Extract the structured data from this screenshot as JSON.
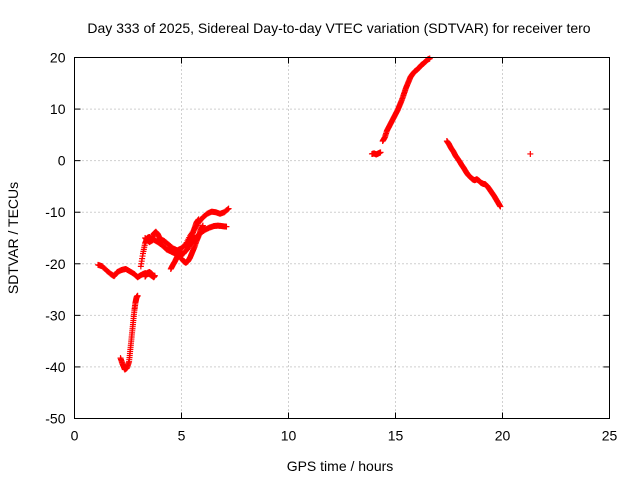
{
  "chart_data": {
    "type": "scatter",
    "title": "Day 333 of 2025, Sidereal Day-to-day VTEC variation (SDTVAR) for receiver tero",
    "xlabel": "GPS time / hours",
    "ylabel": "SDTVAR / TECUs",
    "xlim": [
      0,
      25
    ],
    "ylim": [
      -50,
      20
    ],
    "xticks": [
      0,
      5,
      10,
      15,
      20,
      25
    ],
    "yticks": [
      -50,
      -40,
      -30,
      -20,
      -10,
      0,
      10,
      20
    ],
    "xtick_labels": [
      "0",
      "5",
      "10",
      "15",
      "20",
      "25"
    ],
    "ytick_labels": [
      "-50",
      "-40",
      "-30",
      "-20",
      "-10",
      "0",
      "10",
      "20"
    ],
    "grid": true,
    "marker": "plus",
    "color": "#ff0000",
    "series": [
      {
        "segments": [
          [
            [
              1.1,
              -20.2
            ],
            [
              1.3,
              -20.5
            ],
            [
              1.5,
              -21.3
            ],
            [
              1.7,
              -22.0
            ],
            [
              1.85,
              -22.4
            ],
            [
              2.0,
              -21.6
            ],
            [
              2.2,
              -21.2
            ],
            [
              2.4,
              -21.0
            ],
            [
              2.6,
              -21.5
            ],
            [
              2.8,
              -22.0
            ],
            [
              2.95,
              -22.6
            ],
            [
              3.1,
              -22.2
            ],
            [
              3.3,
              -21.8
            ],
            [
              3.5,
              -22.0
            ],
            [
              3.7,
              -22.6
            ],
            [
              3.75,
              -22.3
            ]
          ],
          [
            [
              2.15,
              -38.3
            ],
            [
              2.25,
              -39.5
            ],
            [
              2.35,
              -40.5
            ],
            [
              2.45,
              -40.2
            ],
            [
              2.55,
              -39.0
            ],
            [
              2.6,
              -37.0
            ],
            [
              2.65,
              -35.0
            ],
            [
              2.7,
              -33.0
            ],
            [
              2.75,
              -31.0
            ],
            [
              2.8,
              -29.0
            ],
            [
              2.85,
              -27.5
            ],
            [
              2.9,
              -26.5
            ],
            [
              2.95,
              -26.2
            ]
          ],
          [
            [
              3.1,
              -20.5
            ],
            [
              3.2,
              -18.0
            ],
            [
              3.3,
              -16.0
            ],
            [
              3.4,
              -15.0
            ],
            [
              3.5,
              -14.8
            ],
            [
              3.6,
              -15.4
            ],
            [
              3.7,
              -14.2
            ],
            [
              3.8,
              -13.8
            ],
            [
              3.9,
              -14.3
            ],
            [
              4.0,
              -15.2
            ],
            [
              4.2,
              -15.6
            ],
            [
              4.4,
              -16.3
            ],
            [
              4.6,
              -17.0
            ],
            [
              4.8,
              -17.4
            ],
            [
              5.0,
              -17.0
            ],
            [
              5.2,
              -16.2
            ],
            [
              5.4,
              -14.6
            ],
            [
              5.6,
              -13.4
            ],
            [
              5.8,
              -12.0
            ],
            [
              6.0,
              -11.0
            ],
            [
              6.2,
              -10.3
            ],
            [
              6.4,
              -9.9
            ],
            [
              6.6,
              -10.0
            ],
            [
              6.8,
              -10.3
            ],
            [
              7.0,
              -10.0
            ],
            [
              7.2,
              -9.3
            ]
          ],
          [
            [
              3.3,
              -15.0
            ],
            [
              3.5,
              -15.8
            ],
            [
              3.7,
              -15.3
            ],
            [
              3.9,
              -15.8
            ],
            [
              4.1,
              -16.4
            ],
            [
              4.3,
              -17.2
            ],
            [
              4.5,
              -17.6
            ],
            [
              4.7,
              -18.0
            ],
            [
              4.9,
              -18.4
            ],
            [
              5.1,
              -18.0
            ],
            [
              5.3,
              -17.0
            ],
            [
              5.5,
              -15.8
            ],
            [
              5.7,
              -14.8
            ],
            [
              5.9,
              -14.0
            ],
            [
              6.1,
              -13.4
            ],
            [
              6.3,
              -13.0
            ],
            [
              6.5,
              -12.7
            ],
            [
              6.7,
              -12.6
            ],
            [
              6.9,
              -12.7
            ],
            [
              7.1,
              -12.8
            ]
          ],
          [
            [
              3.3,
              -22.5
            ],
            [
              3.4,
              -21.8
            ],
            [
              3.5,
              -21.6
            ],
            [
              3.6,
              -21.9
            ],
            [
              3.7,
              -22.4
            ]
          ],
          [
            [
              4.5,
              -21.0
            ],
            [
              4.6,
              -20.2
            ],
            [
              4.7,
              -19.5
            ],
            [
              4.8,
              -18.6
            ],
            [
              4.9,
              -18.0
            ],
            [
              5.0,
              -17.6
            ]
          ],
          [
            [
              5.0,
              -19.0
            ],
            [
              5.1,
              -19.5
            ],
            [
              5.2,
              -19.8
            ],
            [
              5.3,
              -19.5
            ],
            [
              5.4,
              -18.8
            ],
            [
              5.5,
              -17.8
            ],
            [
              5.6,
              -16.8
            ],
            [
              5.7,
              -15.6
            ],
            [
              5.8,
              -14.6
            ],
            [
              5.9,
              -13.4
            ],
            [
              6.0,
              -12.6
            ]
          ],
          [
            [
              5.2,
              -16.6
            ],
            [
              5.3,
              -16.2
            ],
            [
              5.4,
              -15.4
            ],
            [
              5.5,
              -14.4
            ],
            [
              5.6,
              -13.2
            ],
            [
              5.7,
              -12.0
            ],
            [
              5.8,
              -11.4
            ]
          ],
          [
            [
              13.9,
              1.3
            ],
            [
              14.0,
              1.4
            ],
            [
              14.1,
              1.2
            ],
            [
              14.2,
              1.4
            ],
            [
              14.3,
              1.6
            ]
          ],
          [
            [
              14.4,
              3.8
            ],
            [
              14.5,
              4.5
            ],
            [
              14.6,
              5.8
            ],
            [
              14.7,
              6.6
            ],
            [
              14.8,
              7.4
            ],
            [
              14.9,
              8.2
            ],
            [
              15.0,
              9.0
            ],
            [
              15.1,
              9.8
            ],
            [
              15.2,
              10.8
            ],
            [
              15.3,
              11.8
            ],
            [
              15.4,
              13.0
            ],
            [
              15.5,
              14.2
            ],
            [
              15.6,
              15.2
            ],
            [
              15.7,
              16.2
            ],
            [
              15.8,
              16.8
            ],
            [
              15.9,
              17.3
            ],
            [
              16.0,
              17.6
            ],
            [
              16.1,
              18.0
            ],
            [
              16.2,
              18.5
            ],
            [
              16.3,
              18.8
            ],
            [
              16.4,
              19.2
            ],
            [
              16.5,
              19.6
            ],
            [
              16.6,
              19.8
            ]
          ],
          [
            [
              17.4,
              3.8
            ],
            [
              17.5,
              3.2
            ],
            [
              17.6,
              2.4
            ],
            [
              17.7,
              1.8
            ],
            [
              17.8,
              1.0
            ],
            [
              17.9,
              0.4
            ],
            [
              18.0,
              -0.2
            ],
            [
              18.1,
              -0.9
            ],
            [
              18.2,
              -1.5
            ],
            [
              18.3,
              -2.2
            ],
            [
              18.4,
              -2.8
            ],
            [
              18.5,
              -3.2
            ],
            [
              18.6,
              -3.6
            ],
            [
              18.7,
              -3.8
            ],
            [
              18.8,
              -3.6
            ],
            [
              18.9,
              -3.9
            ],
            [
              19.0,
              -4.3
            ],
            [
              19.1,
              -4.5
            ],
            [
              19.2,
              -4.6
            ],
            [
              19.3,
              -5.0
            ],
            [
              19.4,
              -5.6
            ],
            [
              19.5,
              -6.2
            ],
            [
              19.6,
              -6.8
            ],
            [
              19.7,
              -7.5
            ],
            [
              19.8,
              -8.2
            ],
            [
              19.9,
              -8.9
            ]
          ],
          [
            [
              21.3,
              1.3
            ]
          ]
        ]
      }
    ]
  }
}
